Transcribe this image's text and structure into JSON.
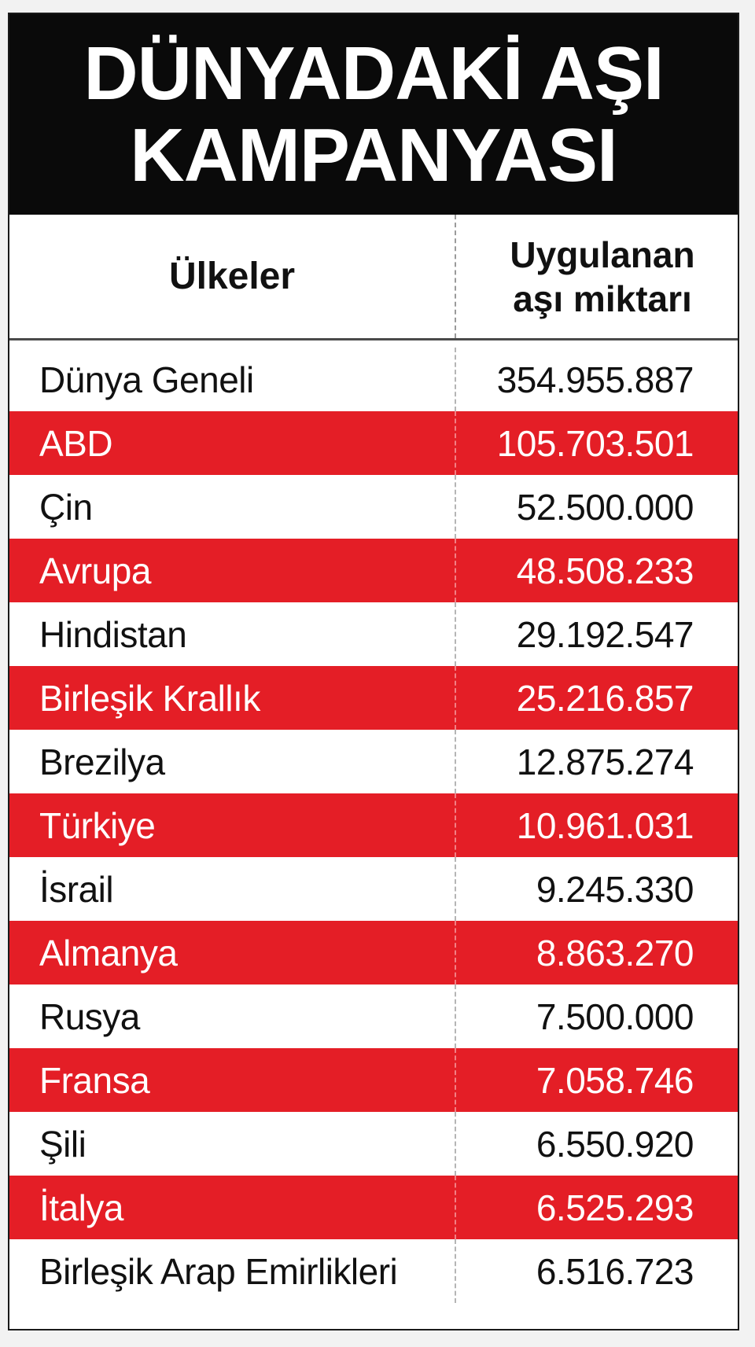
{
  "chart_data": {
    "type": "table",
    "title_lines": [
      "DÜNYADAKİ AŞI",
      "KAMPANYASI"
    ],
    "columns": [
      "Ülkeler",
      "Uygulanan aşı miktarı"
    ],
    "value_header_lines": [
      "Uygulanan",
      "aşı miktarı"
    ],
    "rows": [
      {
        "country": "Dünya Geneli",
        "value": "354.955.887"
      },
      {
        "country": "ABD",
        "value": "105.703.501"
      },
      {
        "country": "Çin",
        "value": "52.500.000"
      },
      {
        "country": "Avrupa",
        "value": "48.508.233"
      },
      {
        "country": "Hindistan",
        "value": "29.192.547"
      },
      {
        "country": "Birleşik Krallık",
        "value": "25.216.857"
      },
      {
        "country": "Brezilya",
        "value": "12.875.274"
      },
      {
        "country": "Türkiye",
        "value": "10.961.031"
      },
      {
        "country": "İsrail",
        "value": "9.245.330"
      },
      {
        "country": "Almanya",
        "value": "8.863.270"
      },
      {
        "country": "Rusya",
        "value": "7.500.000"
      },
      {
        "country": "Fransa",
        "value": "7.058.746"
      },
      {
        "country": "Şili",
        "value": "6.550.920"
      },
      {
        "country": "İtalya",
        "value": "6.525.293"
      },
      {
        "country": "Birleşik Arap Emirlikleri",
        "value": "6.516.723"
      }
    ]
  },
  "colors": {
    "title_bg": "#0a0a0a",
    "accent_row": "#e41e26",
    "plain_row": "#ffffff"
  }
}
